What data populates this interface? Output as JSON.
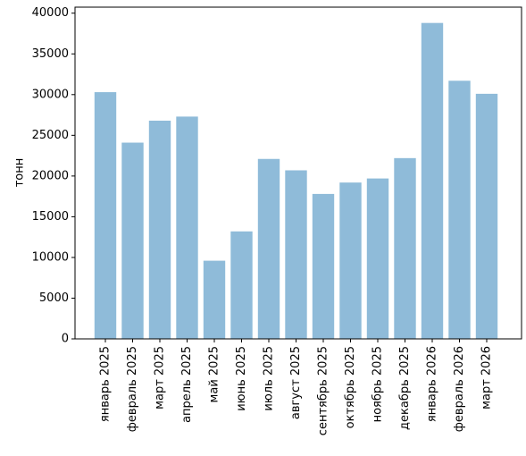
{
  "chart_data": {
    "type": "bar",
    "y_label": "тонн",
    "categories": [
      "январь 2025",
      "февраль 2025",
      "март 2025",
      "апрель 2025",
      "май 2025",
      "июнь 2025",
      "июль 2025",
      "август 2025",
      "сентябрь 2025",
      "октябрь 2025",
      "ноябрь 2025",
      "декабрь 2025",
      "январь 2026",
      "февраль 2026",
      "март 2026"
    ],
    "values": [
      30300,
      24100,
      26800,
      27300,
      9600,
      13200,
      22100,
      20700,
      17800,
      19200,
      19700,
      22200,
      38800,
      31700,
      30100
    ],
    "color": "#8fbbd9",
    "ylim": [
      0,
      40740
    ],
    "yticks": [
      0,
      5000,
      10000,
      15000,
      20000,
      25000,
      30000,
      35000,
      40000
    ]
  }
}
